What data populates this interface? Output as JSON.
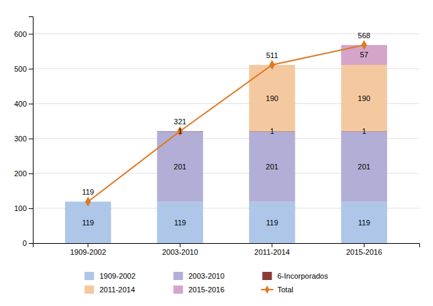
{
  "chart_data": {
    "type": "bar",
    "stacked": true,
    "categories": [
      "1909-2002",
      "2003-2010",
      "2011-2014",
      "2015-2016"
    ],
    "series": [
      {
        "name": "1909-2002",
        "color": "#aec6e8",
        "values": [
          119,
          119,
          119,
          119
        ]
      },
      {
        "name": "2003-2010",
        "color": "#b3aed6",
        "values": [
          0,
          201,
          201,
          201
        ]
      },
      {
        "name": "6-Incorporados",
        "color": "#8b3a3a",
        "values": [
          0,
          1,
          1,
          1
        ]
      },
      {
        "name": "2011-2014",
        "color": "#f5c9a0",
        "values": [
          0,
          0,
          190,
          190
        ]
      },
      {
        "name": "2015-2016",
        "color": "#d4a5c9",
        "values": [
          0,
          0,
          0,
          57
        ]
      },
      {
        "name": "Total",
        "type": "line",
        "color": "#e07820",
        "marker": "diamond",
        "values": [
          119,
          321,
          511,
          568
        ]
      }
    ],
    "ylim": [
      0,
      650
    ],
    "yticks": [
      0,
      100,
      200,
      300,
      400,
      500,
      600
    ],
    "grid": true,
    "data_labels": true,
    "legend": "bottom"
  }
}
